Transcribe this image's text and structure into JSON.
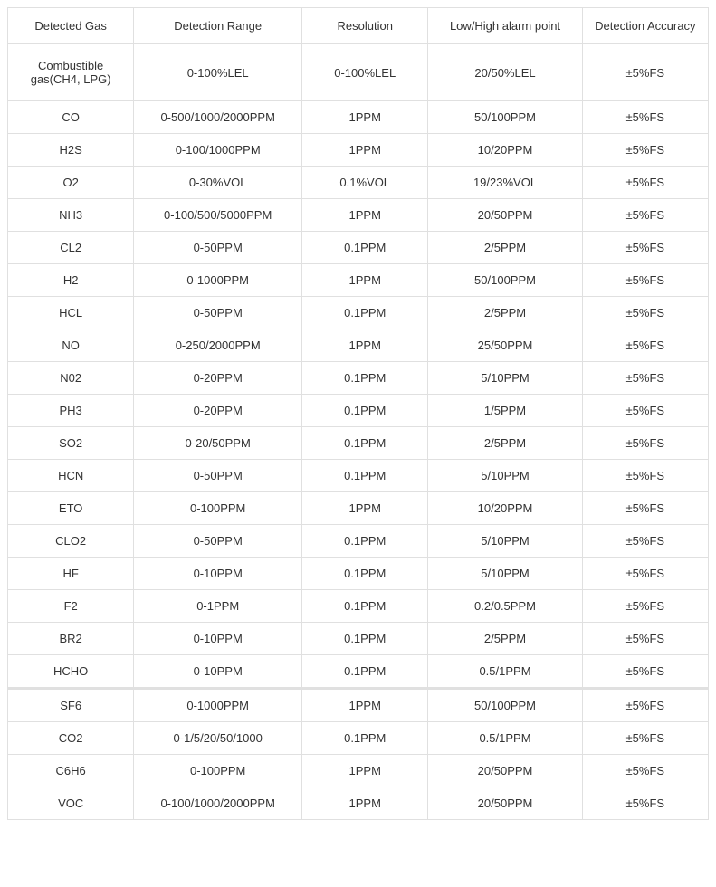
{
  "table": {
    "columns": [
      "Detected Gas",
      "Detection Range",
      "Resolution",
      "Low/High alarm point",
      "Detection Accuracy"
    ],
    "column_widths_pct": [
      18,
      24,
      18,
      22,
      18
    ],
    "border_color": "#e0e0e0",
    "text_color": "#333333",
    "background_color": "#ffffff",
    "font_size": 13,
    "rows": [
      {
        "gas": "Combustible gas(CH4, LPG)",
        "range": "0-100%LEL",
        "resolution": "0-100%LEL",
        "alarm": "20/50%LEL",
        "accuracy": "±5%FS",
        "tall": true
      },
      {
        "gas": "CO",
        "range": "0-500/1000/2000PPM",
        "resolution": "1PPM",
        "alarm": "50/100PPM",
        "accuracy": "±5%FS"
      },
      {
        "gas": "H2S",
        "range": "0-100/1000PPM",
        "resolution": "1PPM",
        "alarm": "10/20PPM",
        "accuracy": "±5%FS"
      },
      {
        "gas": "O2",
        "range": "0-30%VOL",
        "resolution": "0.1%VOL",
        "alarm": "19/23%VOL",
        "accuracy": "±5%FS"
      },
      {
        "gas": "NH3",
        "range": "0-100/500/5000PPM",
        "resolution": "1PPM",
        "alarm": "20/50PPM",
        "accuracy": "±5%FS"
      },
      {
        "gas": "CL2",
        "range": "0-50PPM",
        "resolution": "0.1PPM",
        "alarm": "2/5PPM",
        "accuracy": "±5%FS"
      },
      {
        "gas": "H2",
        "range": "0-1000PPM",
        "resolution": "1PPM",
        "alarm": "50/100PPM",
        "accuracy": "±5%FS"
      },
      {
        "gas": "HCL",
        "range": "0-50PPM",
        "resolution": "0.1PPM",
        "alarm": "2/5PPM",
        "accuracy": "±5%FS"
      },
      {
        "gas": "NO",
        "range": "0-250/2000PPM",
        "resolution": "1PPM",
        "alarm": "25/50PPM",
        "accuracy": "±5%FS"
      },
      {
        "gas": "N02",
        "range": "0-20PPM",
        "resolution": "0.1PPM",
        "alarm": "5/10PPM",
        "accuracy": "±5%FS"
      },
      {
        "gas": "PH3",
        "range": "0-20PPM",
        "resolution": "0.1PPM",
        "alarm": "1/5PPM",
        "accuracy": "±5%FS"
      },
      {
        "gas": "SO2",
        "range": "0-20/50PPM",
        "resolution": "0.1PPM",
        "alarm": "2/5PPM",
        "accuracy": "±5%FS"
      },
      {
        "gas": "HCN",
        "range": "0-50PPM",
        "resolution": "0.1PPM",
        "alarm": "5/10PPM",
        "accuracy": "±5%FS"
      },
      {
        "gas": "ETO",
        "range": "0-100PPM",
        "resolution": "1PPM",
        "alarm": "10/20PPM",
        "accuracy": "±5%FS"
      },
      {
        "gas": "CLO2",
        "range": "0-50PPM",
        "resolution": "0.1PPM",
        "alarm": "5/10PPM",
        "accuracy": "±5%FS"
      },
      {
        "gas": "HF",
        "range": "0-10PPM",
        "resolution": "0.1PPM",
        "alarm": "5/10PPM",
        "accuracy": "±5%FS"
      },
      {
        "gas": "F2",
        "range": "0-1PPM",
        "resolution": "0.1PPM",
        "alarm": "0.2/0.5PPM",
        "accuracy": "±5%FS"
      },
      {
        "gas": "BR2",
        "range": "0-10PPM",
        "resolution": "0.1PPM",
        "alarm": "2/5PPM",
        "accuracy": "±5%FS"
      },
      {
        "gas": "HCHO",
        "range": "0-10PPM",
        "resolution": "0.1PPM",
        "alarm": "0.5/1PPM",
        "accuracy": "±5%FS"
      },
      {
        "gas": "SF6",
        "range": "0-1000PPM",
        "resolution": "1PPM",
        "alarm": "50/100PPM",
        "accuracy": "±5%FS",
        "section_gap": true
      },
      {
        "gas": "CO2",
        "range": "0-1/5/20/50/1000",
        "resolution": "0.1PPM",
        "alarm": "0.5/1PPM",
        "accuracy": "±5%FS"
      },
      {
        "gas": "C6H6",
        "range": "0-100PPM",
        "resolution": "1PPM",
        "alarm": "20/50PPM",
        "accuracy": "±5%FS"
      },
      {
        "gas": "VOC",
        "range": "0-100/1000/2000PPM",
        "resolution": "1PPM",
        "alarm": "20/50PPM",
        "accuracy": "±5%FS"
      }
    ]
  }
}
